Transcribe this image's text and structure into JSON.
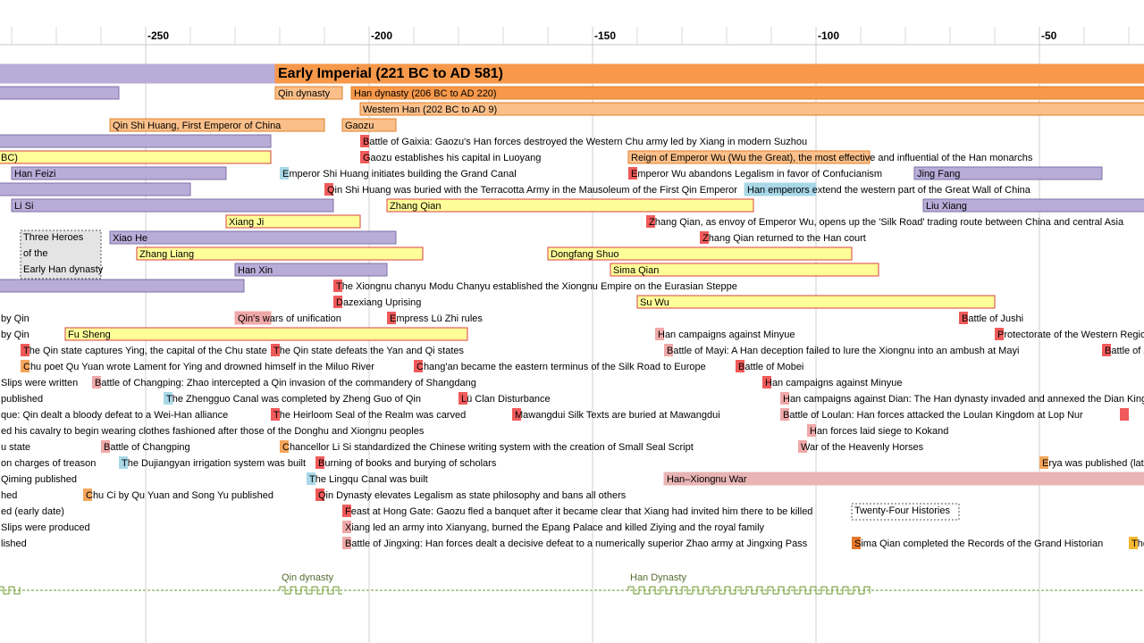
{
  "timeline": {
    "xlim": [
      -282.6,
      -26.6
    ],
    "xticks": [
      -250,
      -200,
      -150,
      -100,
      -50
    ],
    "minor_tick_interval": 10,
    "era": [
      {
        "start": -290,
        "end": -221,
        "color": "#b8acd8",
        "border": "#b8acd8"
      },
      {
        "label": "Early Imperial (221 BC to AD 581)",
        "start": -221,
        "end": -20,
        "color": "#f7984a",
        "border": "#f7984a"
      }
    ],
    "rows": [
      [
        {
          "start": -290,
          "end": -256,
          "color": "#b8acd8",
          "border": "#7e72a8"
        },
        {
          "label": "Qin dynasty",
          "start": -221,
          "end": -206,
          "color": "#fbc08a",
          "border": "#e0802a"
        },
        {
          "label": "Han dynasty (206 BC to AD 220)",
          "start": -204,
          "end": -20,
          "color": "#f7984a",
          "border": "#e0802a"
        }
      ],
      [
        {
          "label": "Western Han (202 BC to AD 9)",
          "start": -202,
          "end": -20,
          "color": "#fbc08a",
          "border": "#e0802a"
        }
      ],
      [
        {
          "label": "Qin Shi Huang, First Emperor of China",
          "start": -258,
          "end": -210,
          "color": "#fbc08a",
          "border": "#e0802a"
        },
        {
          "label": "Gaozu",
          "start": -206,
          "end": -194,
          "color": "#fbc08a",
          "border": "#e0802a"
        }
      ],
      [
        {
          "start": -290,
          "end": -222,
          "color": "#b8acd8",
          "border": "#7e72a8"
        },
        {
          "label": "Battle of Gaixia: Gaozu's Han forces destroyed the Western Chu army led by Xiang in modern Suzhou",
          "start": -202,
          "color": "#f05a5a"
        }
      ],
      [
        {
          "label": "BC)",
          "start": -290,
          "end": -222,
          "color": "#ffff99",
          "border": "#d94040"
        },
        {
          "label": "Gaozu establishes his capital in Luoyang",
          "start": -202,
          "color": "#f05a5a"
        },
        {
          "label": "Reign of Emperor Wu (Wu the Great), the most effective and influential of the Han monarchs",
          "start": -142,
          "end": -88,
          "color": "#fbc08a",
          "border": "#e0802a"
        }
      ],
      [
        {
          "label": "Han Feizi",
          "start": -280,
          "end": -232,
          "color": "#b8acd8",
          "border": "#7e72a8"
        },
        {
          "label": "Emperor Shi Huang initiates building the Grand Canal",
          "start": -220,
          "color": "#a8d8e8"
        },
        {
          "label": "Emperor Wu abandons Legalism in favor of Confucianism",
          "start": -142,
          "color": "#f05a5a"
        },
        {
          "label": "Jing Fang",
          "start": -78,
          "end": -36,
          "color": "#b8acd8",
          "border": "#7e72a8"
        }
      ],
      [
        {
          "start": -290,
          "end": -240,
          "color": "#b8acd8",
          "border": "#7e72a8"
        },
        {
          "label": "Qin Shi Huang was buried with the Terracotta Army in the Mausoleum of the First Qin Emperor",
          "start": -210,
          "color": "#f05a5a"
        },
        {
          "label": "Han emperors extend the western part of the Great Wall of China",
          "start": -116,
          "end": -100,
          "color": "#a8d8e8",
          "border": "#a8d8e8"
        }
      ],
      [
        {
          "label": "Li Si",
          "start": -280,
          "end": -208,
          "color": "#b8acd8",
          "border": "#7e72a8"
        },
        {
          "label": "Zhang Qian",
          "start": -196,
          "end": -114,
          "color": "#ffff99",
          "border": "#d94040"
        },
        {
          "label": "Liu Xiang",
          "start": -76,
          "end": -20,
          "color": "#b8acd8",
          "border": "#7e72a8"
        }
      ],
      [
        {
          "label": "Xiang Ji",
          "start": -232,
          "end": -202,
          "color": "#ffff99",
          "border": "#d94040"
        },
        {
          "label": "Zhang Qian, as envoy of Emperor Wu, opens up the 'Silk Road' trading route between China and central Asia",
          "start": -138,
          "color": "#f05a5a"
        }
      ],
      [
        {
          "note": [
            "Three Heroes",
            "of the",
            "Early Han dynasty"
          ],
          "start": -278,
          "end": -260
        },
        {
          "label": "Xiao He",
          "start": -258,
          "end": -194,
          "color": "#b8acd8",
          "border": "#7e72a8"
        },
        {
          "label": "Zhang Qian returned to the Han court",
          "start": -126,
          "color": "#f05a5a"
        }
      ],
      [
        {
          "label": "Zhang Liang",
          "start": -252,
          "end": -188,
          "color": "#ffff99",
          "border": "#d94040"
        },
        {
          "label": "Dongfang Shuo",
          "start": -160,
          "end": -92,
          "color": "#ffff99",
          "border": "#d94040"
        }
      ],
      [
        {
          "label": "Han Xin",
          "start": -230,
          "end": -196,
          "color": "#b8acd8",
          "border": "#7e72a8"
        },
        {
          "label": "Sima Qian",
          "start": -146,
          "end": -86,
          "color": "#ffff99",
          "border": "#d94040"
        }
      ],
      [
        {
          "start": -290,
          "end": -228,
          "color": "#b8acd8",
          "border": "#7e72a8"
        },
        {
          "label": "The Xiongnu chanyu Modu Chanyu established the Xiongnu Empire on the Eurasian Steppe",
          "start": -208,
          "color": "#f05a5a"
        }
      ],
      [
        {
          "label": "Dazexiang Uprising",
          "start": -208,
          "color": "#f05a5a"
        },
        {
          "label": "Su Wu",
          "start": -140,
          "end": -60,
          "color": "#ffff99",
          "border": "#d94040"
        }
      ],
      [
        {
          "label": "by Qin",
          "start": -290
        },
        {
          "label": "Qin's wars of unification",
          "start": -230,
          "end": -222,
          "color": "#f0a8a8",
          "border": "#f0a8a8"
        },
        {
          "label": "Empress Lü Zhi rules",
          "start": -196,
          "color": "#f05a5a"
        },
        {
          "label": "Battle of Jushi",
          "start": -68,
          "color": "#f05a5a"
        }
      ],
      [
        {
          "label": "by Qin",
          "start": -290
        },
        {
          "label": "Fu Sheng",
          "start": -268,
          "end": -178,
          "color": "#ffff99",
          "border": "#d94040"
        },
        {
          "label": "Han campaigns against Minyue",
          "start": -136,
          "color": "#f0a8a8"
        },
        {
          "label": "Protectorate of the Western Regions",
          "start": -60,
          "color": "#f05a5a"
        }
      ],
      [
        {
          "label": "The Qin state captures Ying, the capital of the Chu state",
          "start": -278,
          "color": "#f05a5a"
        },
        {
          "label": "The Qin state defeats the Yan and Qi states",
          "start": -222,
          "color": "#f05a5a"
        },
        {
          "label": "Battle of Mayi: A Han deception failed to lure the Xiongnu into an ambush at Mayi",
          "start": -134,
          "color": "#f0a8a8"
        },
        {
          "label": "Battle of Z",
          "start": -36,
          "color": "#f05a5a"
        }
      ],
      [
        {
          "label": "Chu poet Qu Yuan wrote Lament for Ying and drowned himself in the Miluo River",
          "start": -278,
          "color": "#f5a55a"
        },
        {
          "label": "Chang'an became the eastern terminus of the Silk Road to Europe",
          "start": -190,
          "color": "#f05a5a"
        },
        {
          "label": "Battle of Mobei",
          "start": -118,
          "color": "#f05a5a"
        }
      ],
      [
        {
          "label": "Slips were written",
          "start": -290
        },
        {
          "label": "Battle of Changping: Zhao intercepted a Qin invasion of the commandery of Shangdang",
          "start": -262,
          "color": "#f0a8a8"
        },
        {
          "label": "Han campaigns against Minyue",
          "start": -112,
          "color": "#f05a5a"
        }
      ],
      [
        {
          "label": "published",
          "start": -290
        },
        {
          "label": "The Zhengguo Canal was completed by Zheng Guo of Qin",
          "start": -246,
          "color": "#a8d8e8"
        },
        {
          "label": "Lü Clan Disturbance",
          "start": -180,
          "color": "#f05a5a"
        },
        {
          "label": "Han campaigns against Dian: The Han dynasty invaded and annexed the Dian Kingdo",
          "start": -108,
          "color": "#f0a8a8"
        }
      ],
      [
        {
          "label": "que: Qin dealt a bloody defeat to a Wei-Han alliance",
          "start": -290
        },
        {
          "label": "The Heirloom Seal of the Realm was carved",
          "start": -222,
          "color": "#f05a5a"
        },
        {
          "label": "Mawangdui Silk Texts are buried at Mawangdui",
          "start": -168,
          "color": "#f05a5a"
        },
        {
          "label": "Battle of Loulan: Han forces attacked the Loulan Kingdom at Lop Nur",
          "start": -108,
          "color": "#f0a8a8"
        },
        {
          "start": -32,
          "color": "#f05a5a"
        }
      ],
      [
        {
          "label": "ed his cavalry to begin wearing clothes fashioned after those of the Donghu and Xiongnu peoples",
          "start": -290
        },
        {
          "label": "Han forces laid siege to Kokand",
          "start": -102,
          "color": "#f0a8a8"
        }
      ],
      [
        {
          "label": "u state",
          "start": -290
        },
        {
          "label": "Battle of Changping",
          "start": -260,
          "color": "#f0a8a8"
        },
        {
          "label": "Chancellor Li Si standardized the Chinese writing system with the creation of Small Seal Script",
          "start": -220,
          "color": "#f5a55a"
        },
        {
          "label": "War of the Heavenly Horses",
          "start": -104,
          "color": "#f0a8a8"
        }
      ],
      [
        {
          "label": "on charges of treason",
          "start": -290
        },
        {
          "label": "The Dujiangyan irrigation system was built",
          "start": -256,
          "color": "#a8d8e8"
        },
        {
          "label": "Burning of books and burying of scholars",
          "start": -212,
          "color": "#f05a5a"
        },
        {
          "label": "Erya was published (lat",
          "start": -50,
          "color": "#f5a55a"
        }
      ],
      [
        {
          "label": "Qiming published",
          "start": -290
        },
        {
          "label": "The Lingqu Canal was built",
          "start": -214,
          "color": "#a8d8e8"
        },
        {
          "label": "Han–Xiongnu War",
          "start": -134,
          "end": -20,
          "color": "#e8b4b4",
          "border": "#e8b4b4"
        }
      ],
      [
        {
          "label": "hed",
          "start": -290
        },
        {
          "label": "Chu Ci by Qu Yuan and Song Yu published",
          "start": -264,
          "color": "#f5a55a"
        },
        {
          "label": "Qin Dynasty elevates Legalism as state philosophy and bans all others",
          "start": -212,
          "color": "#f05a5a"
        }
      ],
      [
        {
          "label": "ed (early date)",
          "start": -290
        },
        {
          "label": "Feast at Hong Gate: Gaozu fled a banquet after it became clear that Xiang had invited him there to be killed",
          "start": -206,
          "color": "#f05a5a"
        },
        {
          "note": [
            "Twenty-Four Histories"
          ],
          "start": -92,
          "end": -68
        }
      ],
      [
        {
          "label": "Slips were produced",
          "start": -290
        },
        {
          "label": "Xiang led an army into Xianyang, burned the Epang Palace and killed Ziying and the royal family",
          "start": -206,
          "color": "#f0a8a8"
        }
      ],
      [
        {
          "label": "lished",
          "start": -290
        },
        {
          "label": "Battle of Jingxing: Han forces dealt a decisive defeat to a numerically superior Zhao army at Jingxing Pass",
          "start": -206,
          "color": "#f0a8a8"
        },
        {
          "label": "Sima Qian completed the Records of the Grand Historian",
          "start": -92,
          "color": "#e8782a"
        },
        {
          "label": "The",
          "start": -30,
          "color": "#f5b830"
        }
      ]
    ],
    "overview": [
      {
        "label": "Qin dynasty",
        "start": -220,
        "end": -206
      },
      {
        "label": "Han Dynasty",
        "start": -142,
        "end": -88
      }
    ]
  }
}
